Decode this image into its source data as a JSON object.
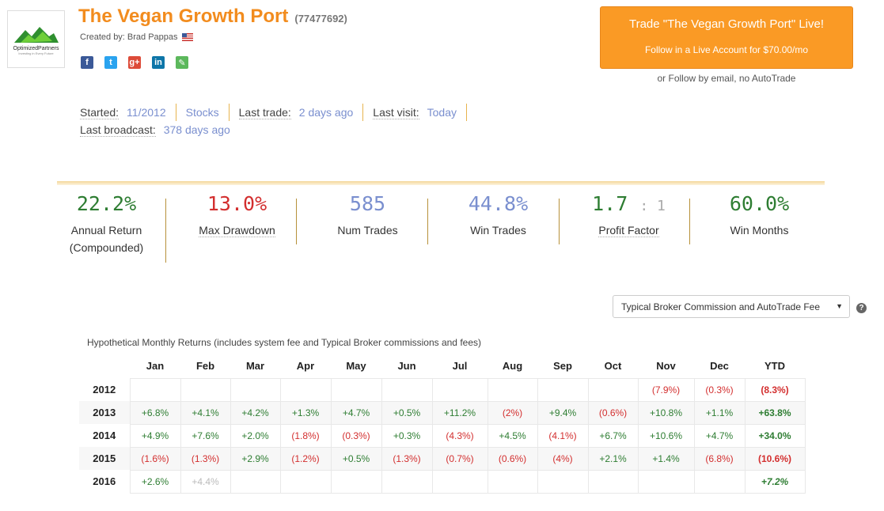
{
  "header": {
    "logo_text": "OptimizedPartners",
    "logo_sub": "Investing in Every Future",
    "title": "The Vegan Growth Port",
    "system_id": "(77477692)",
    "created_by": "Created by: Brad Pappas",
    "social": [
      "f",
      "t",
      "g+",
      "in",
      "✎"
    ]
  },
  "trade_button": {
    "line1": "Trade \"The Vegan Growth Port\" Live!",
    "line2": "Follow in a Live Account for $70.00/mo"
  },
  "follow_email": "or Follow by email, no AutoTrade",
  "info": {
    "started_label": "Started:",
    "started_value": "11/2012",
    "type_value": "Stocks",
    "last_trade_label": "Last trade:",
    "last_trade_value": "2 days ago",
    "last_visit_label": "Last visit:",
    "last_visit_value": "Today",
    "last_broadcast_label": "Last broadcast:",
    "last_broadcast_value": "378 days ago"
  },
  "stats": {
    "annual_return": {
      "value": "22.2%",
      "caption1": "Annual Return",
      "caption2": "(Compounded)"
    },
    "max_drawdown": {
      "value": "13.0%",
      "caption": "Max Drawdown"
    },
    "num_trades": {
      "value": "585",
      "caption": "Num Trades"
    },
    "win_trades": {
      "value": "44.8%",
      "caption": "Win Trades"
    },
    "profit_factor": {
      "value": "1.7",
      "sep": ": 1",
      "caption": "Profit Factor"
    },
    "win_months": {
      "value": "60.0%",
      "caption": "Win Months"
    }
  },
  "commission_select": {
    "selected": "Typical Broker Commission and AutoTrade Fee"
  },
  "help_icon": "?",
  "monthly": {
    "title": "Hypothetical Monthly Returns (includes system fee and Typical Broker commissions and fees)",
    "headers": [
      "",
      "Jan",
      "Feb",
      "Mar",
      "Apr",
      "May",
      "Jun",
      "Jul",
      "Aug",
      "Sep",
      "Oct",
      "Nov",
      "Dec",
      "YTD"
    ],
    "rows": [
      {
        "year": "2012",
        "cells": [
          "",
          "",
          "",
          "",
          "",
          "",
          "",
          "",
          "",
          "",
          "(7.9%)",
          "(0.3%)"
        ],
        "ytd": "(8.3%)"
      },
      {
        "year": "2013",
        "cells": [
          "+6.8%",
          "+4.1%",
          "+4.2%",
          "+1.3%",
          "+4.7%",
          "+0.5%",
          "+11.2%",
          "(2%)",
          "+9.4%",
          "(0.6%)",
          "+10.8%",
          "+1.1%"
        ],
        "ytd": "+63.8%"
      },
      {
        "year": "2014",
        "cells": [
          "+4.9%",
          "+7.6%",
          "+2.0%",
          "(1.8%)",
          "(0.3%)",
          "+0.3%",
          "(4.3%)",
          "+4.5%",
          "(4.1%)",
          "+6.7%",
          "+10.6%",
          "+4.7%"
        ],
        "ytd": "+34.0%"
      },
      {
        "year": "2015",
        "cells": [
          "(1.6%)",
          "(1.3%)",
          "+2.9%",
          "(1.2%)",
          "+0.5%",
          "(1.3%)",
          "(0.7%)",
          "(0.6%)",
          "(4%)",
          "+2.1%",
          "+1.4%",
          "(6.8%)"
        ],
        "ytd": "(10.6%)"
      },
      {
        "year": "2016",
        "cells": [
          "+2.6%",
          "+4.4%",
          "",
          "",
          "",
          "",
          "",
          "",
          "",
          "",
          "",
          ""
        ],
        "ytd": "+7.2%"
      }
    ]
  }
}
